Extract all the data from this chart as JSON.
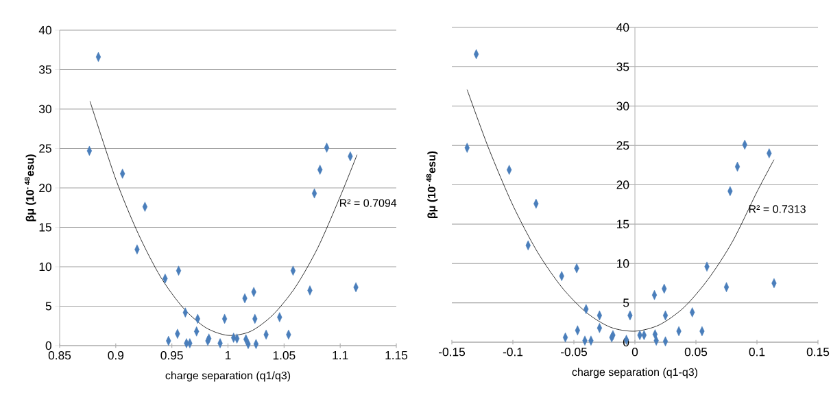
{
  "chart_data": [
    {
      "type": "scatter",
      "xlabel": "charge separation (q1/q3)",
      "ylabel": "βμ  (10$^{- 48}$esu)",
      "xlim": [
        0.85,
        1.15
      ],
      "ylim": [
        0,
        40
      ],
      "xticks": [
        0.85,
        0.9,
        0.95,
        1,
        1.05,
        1.1,
        1.15
      ],
      "yticks": [
        0,
        5,
        10,
        15,
        20,
        25,
        30,
        35,
        40
      ],
      "grid": "y",
      "series": [
        {
          "color": "#4a7ebb",
          "marker": "diamond",
          "x": [
            0.8765,
            0.8845,
            0.906,
            0.926,
            0.919,
            0.944,
            0.956,
            0.947,
            0.955,
            0.962,
            0.963,
            0.966,
            0.973,
            0.972,
            0.982,
            0.983,
            0.993,
            0.997,
            1.005,
            1.008,
            1.015,
            1.016,
            1.018,
            1.023,
            1.024,
            1.025,
            1.034,
            1.046,
            1.054,
            1.058,
            1.073,
            1.077,
            1.082,
            1.088,
            1.109,
            1.114
          ],
          "values": [
            24.7,
            36.6,
            21.8,
            17.6,
            12.2,
            8.5,
            9.5,
            0.6,
            1.5,
            4.2,
            0.3,
            0.3,
            3.4,
            1.8,
            0.6,
            0.9,
            0.3,
            3.4,
            1.0,
            0.9,
            6.0,
            0.8,
            0.2,
            6.8,
            3.4,
            0.2,
            1.4,
            3.6,
            1.4,
            9.5,
            7.0,
            19.3,
            22.3,
            25.1,
            24.0,
            7.4
          ]
        },
        {
          "type": "line",
          "color": "#000000",
          "marker": "none",
          "x": [
            0.877,
            0.9,
            0.92,
            0.94,
            0.96,
            0.98,
            1.0,
            1.02,
            1.04,
            1.06,
            1.08,
            1.1,
            1.115
          ],
          "values": [
            31.0,
            21.1,
            14.2,
            8.7,
            4.8,
            2.3,
            1.3,
            1.8,
            3.9,
            7.4,
            12.4,
            18.9,
            24.2
          ]
        }
      ],
      "annotations": [
        "R² = 0.7094"
      ]
    },
    {
      "type": "scatter",
      "xlabel": "charge separation (q1-q3)",
      "ylabel": "βμ  (10$^{- 48}$esu)",
      "xlim": [
        -0.15,
        0.15
      ],
      "ylim": [
        0,
        40
      ],
      "xticks": [
        -0.15,
        -0.1,
        -0.05,
        0,
        0.05,
        0.1,
        0.15
      ],
      "yticks": [
        0,
        5,
        10,
        15,
        20,
        25,
        30,
        35,
        40
      ],
      "grid": "y",
      "series": [
        {
          "color": "#4a7ebb",
          "marker": "diamond",
          "x": [
            -0.1375,
            -0.13,
            -0.103,
            -0.081,
            -0.0875,
            -0.06,
            -0.0477,
            -0.057,
            -0.047,
            -0.04,
            -0.041,
            -0.036,
            -0.029,
            -0.029,
            -0.019,
            -0.018,
            -0.007,
            -0.004,
            0.004,
            0.0075,
            0.016,
            0.0165,
            0.0175,
            0.024,
            0.025,
            0.025,
            0.036,
            0.047,
            0.055,
            0.059,
            0.075,
            0.078,
            0.084,
            0.09,
            0.11,
            0.114
          ],
          "values": [
            24.7,
            36.6,
            21.9,
            17.6,
            12.3,
            8.4,
            9.4,
            0.6,
            1.5,
            4.2,
            0.2,
            0.2,
            3.4,
            1.8,
            0.6,
            0.9,
            0.3,
            3.4,
            0.9,
            0.9,
            6.0,
            1.0,
            0.2,
            6.8,
            3.4,
            0.1,
            1.4,
            3.8,
            1.4,
            9.6,
            7.0,
            19.2,
            22.3,
            25.1,
            24.0,
            7.5
          ]
        },
        {
          "type": "line",
          "color": "#000000",
          "marker": "none",
          "x": [
            -0.1375,
            -0.12,
            -0.1,
            -0.08,
            -0.06,
            -0.04,
            -0.02,
            0,
            0.02,
            0.04,
            0.06,
            0.08,
            0.1,
            0.114
          ],
          "values": [
            32.1,
            24.7,
            17.4,
            11.5,
            7.0,
            3.8,
            1.9,
            1.4,
            2.2,
            4.4,
            8.0,
            12.8,
            19.1,
            23.2
          ]
        }
      ],
      "annotations": [
        "R² = 0.7313"
      ]
    }
  ]
}
